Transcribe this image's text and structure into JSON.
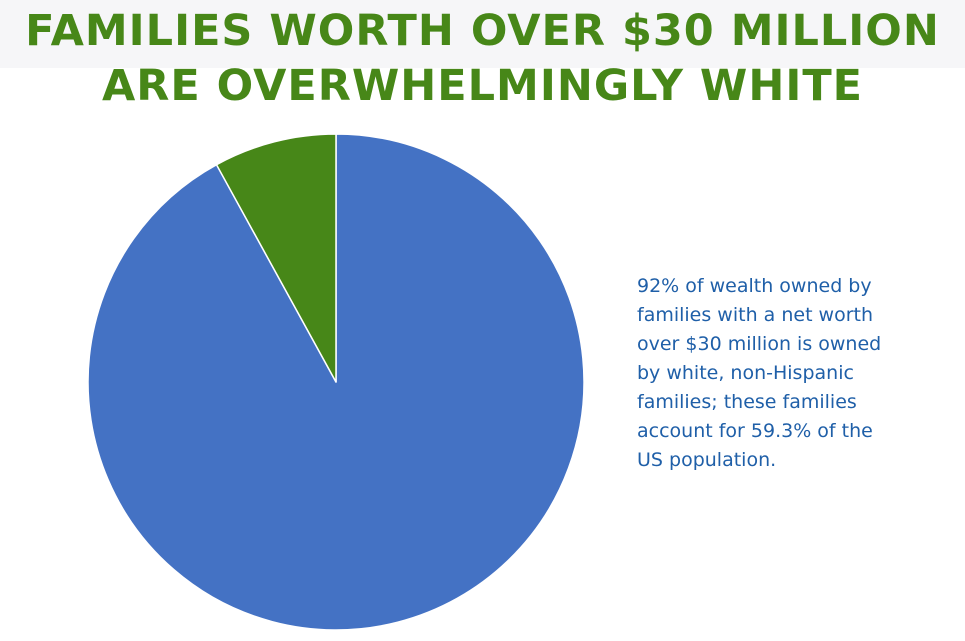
{
  "chart_data": {
    "type": "pie",
    "title": "FAMILIES WORTH OVER $30 MILLION\nARE OVERWHELMINGLY WHITE",
    "slices": [
      {
        "value": 92,
        "color": "#4472c4"
      },
      {
        "value": 8,
        "color": "#478718"
      }
    ],
    "annotation": "92% of wealth owned by\nfamilies with a net worth\nover $30 million is owned\nby white, non-Hispanic\nfamilies; these families\naccount for 59.3% of the\nUS population."
  }
}
